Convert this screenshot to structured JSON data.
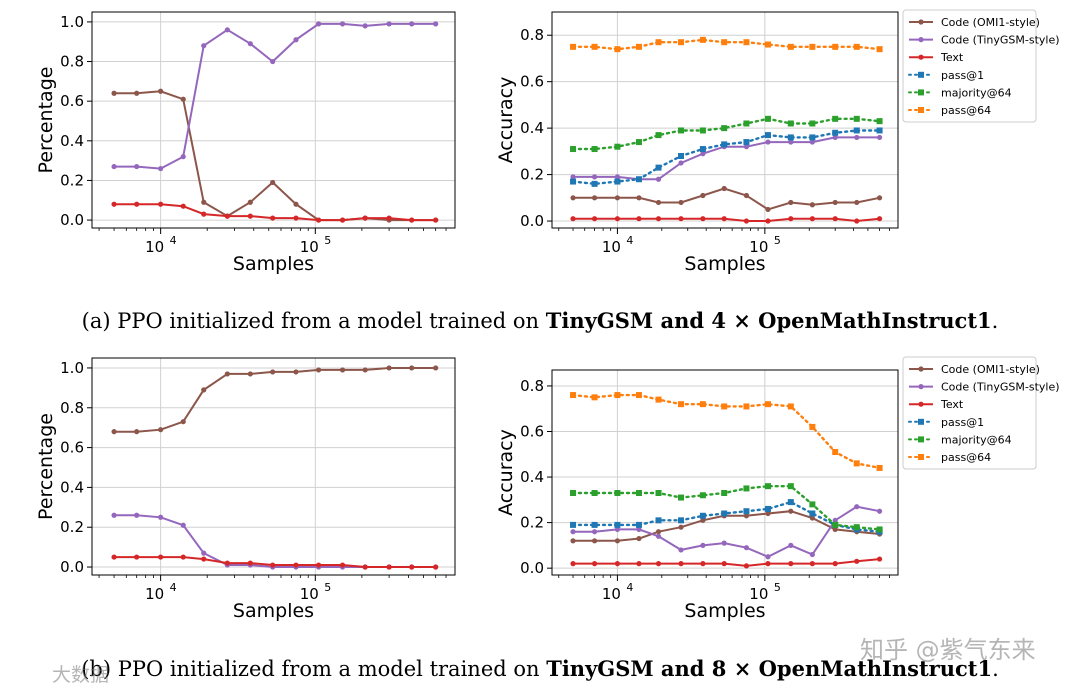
{
  "chart_data": [
    {
      "type": "line",
      "panel": "row1-left",
      "xlabel": "Samples",
      "ylabel": "Percentage",
      "xscale": "log",
      "xlim": [
        3600,
        800000
      ],
      "ylim": [
        -0.04,
        1.05
      ],
      "yticks": [
        "0.0",
        "0.2",
        "0.4",
        "0.6",
        "0.8",
        "1.0"
      ],
      "xticks": [
        {
          "label": "10",
          "exp": "4",
          "value": 10000
        },
        {
          "label": "10",
          "exp": "5",
          "value": 100000
        }
      ],
      "grid": true,
      "x": [
        5000,
        7000,
        10000,
        14000,
        19000,
        27000,
        38000,
        53000,
        75000,
        105000,
        150000,
        210000,
        300000,
        420000,
        600000
      ],
      "series": [
        {
          "name": "Code (OMI1-style)",
          "color": "#8c564b",
          "marker": "circle",
          "style": "solid",
          "values": [
            0.64,
            0.64,
            0.65,
            0.61,
            0.09,
            0.02,
            0.09,
            0.19,
            0.08,
            0.0,
            0.0,
            0.01,
            0.0,
            0.0,
            0.0
          ]
        },
        {
          "name": "Code (TinyGSM-style)",
          "color": "#9467bd",
          "marker": "circle",
          "style": "solid",
          "values": [
            0.27,
            0.27,
            0.26,
            0.32,
            0.88,
            0.96,
            0.89,
            0.8,
            0.91,
            0.99,
            0.99,
            0.98,
            0.99,
            0.99,
            0.99
          ]
        },
        {
          "name": "Text",
          "color": "#d62728",
          "marker": "circle",
          "style": "solid",
          "values": [
            0.08,
            0.08,
            0.08,
            0.07,
            0.03,
            0.02,
            0.02,
            0.01,
            0.01,
            0.0,
            0.0,
            0.01,
            0.01,
            0.0,
            0.0
          ]
        }
      ]
    },
    {
      "type": "line",
      "panel": "row1-right",
      "xlabel": "Samples",
      "ylabel": "Accuracy",
      "xscale": "log",
      "xlim": [
        3600,
        800000
      ],
      "ylim": [
        -0.03,
        0.9
      ],
      "yticks": [
        "0.0",
        "0.2",
        "0.4",
        "0.6",
        "0.8"
      ],
      "xticks": [
        {
          "label": "10",
          "exp": "4",
          "value": 10000
        },
        {
          "label": "10",
          "exp": "5",
          "value": 100000
        }
      ],
      "grid": true,
      "legend": "upper-right-outside",
      "x": [
        5000,
        7000,
        10000,
        14000,
        19000,
        27000,
        38000,
        53000,
        75000,
        105000,
        150000,
        210000,
        300000,
        420000,
        600000
      ],
      "series": [
        {
          "name": "Code (OMI1-style)",
          "color": "#8c564b",
          "marker": "circle",
          "style": "solid",
          "values": [
            0.1,
            0.1,
            0.1,
            0.1,
            0.08,
            0.08,
            0.11,
            0.14,
            0.11,
            0.05,
            0.08,
            0.07,
            0.08,
            0.08,
            0.1
          ]
        },
        {
          "name": "Code (TinyGSM-style)",
          "color": "#9467bd",
          "marker": "circle",
          "style": "solid",
          "values": [
            0.19,
            0.19,
            0.19,
            0.18,
            0.18,
            0.25,
            0.29,
            0.32,
            0.32,
            0.34,
            0.34,
            0.34,
            0.36,
            0.36,
            0.36
          ]
        },
        {
          "name": "Text",
          "color": "#d62728",
          "marker": "circle",
          "style": "solid",
          "values": [
            0.01,
            0.01,
            0.01,
            0.01,
            0.01,
            0.01,
            0.01,
            0.01,
            0.0,
            0.0,
            0.01,
            0.01,
            0.01,
            0.0,
            0.01
          ]
        },
        {
          "name": "pass@1",
          "color": "#1f77b4",
          "marker": "square",
          "style": "dotted",
          "values": [
            0.17,
            0.16,
            0.17,
            0.18,
            0.23,
            0.28,
            0.31,
            0.33,
            0.34,
            0.37,
            0.36,
            0.36,
            0.38,
            0.39,
            0.39
          ]
        },
        {
          "name": "majority@64",
          "color": "#2ca02c",
          "marker": "square",
          "style": "dotted",
          "values": [
            0.31,
            0.31,
            0.32,
            0.34,
            0.37,
            0.39,
            0.39,
            0.4,
            0.42,
            0.44,
            0.42,
            0.42,
            0.44,
            0.44,
            0.43
          ]
        },
        {
          "name": "pass@64",
          "color": "#ff7f0e",
          "marker": "square",
          "style": "dotted",
          "values": [
            0.75,
            0.75,
            0.74,
            0.75,
            0.77,
            0.77,
            0.78,
            0.77,
            0.77,
            0.76,
            0.75,
            0.75,
            0.75,
            0.75,
            0.74
          ]
        }
      ]
    },
    {
      "type": "line",
      "panel": "row2-left",
      "xlabel": "Samples",
      "ylabel": "Percentage",
      "xscale": "log",
      "xlim": [
        3600,
        800000
      ],
      "ylim": [
        -0.04,
        1.05
      ],
      "yticks": [
        "0.0",
        "0.2",
        "0.4",
        "0.6",
        "0.8",
        "1.0"
      ],
      "xticks": [
        {
          "label": "10",
          "exp": "4",
          "value": 10000
        },
        {
          "label": "10",
          "exp": "5",
          "value": 100000
        }
      ],
      "grid": true,
      "x": [
        5000,
        7000,
        10000,
        14000,
        19000,
        27000,
        38000,
        53000,
        75000,
        105000,
        150000,
        210000,
        300000,
        420000,
        600000
      ],
      "series": [
        {
          "name": "Code (OMI1-style)",
          "color": "#8c564b",
          "marker": "circle",
          "style": "solid",
          "values": [
            0.68,
            0.68,
            0.69,
            0.73,
            0.89,
            0.97,
            0.97,
            0.98,
            0.98,
            0.99,
            0.99,
            0.99,
            1.0,
            1.0,
            1.0
          ]
        },
        {
          "name": "Code (TinyGSM-style)",
          "color": "#9467bd",
          "marker": "circle",
          "style": "solid",
          "values": [
            0.26,
            0.26,
            0.25,
            0.21,
            0.07,
            0.01,
            0.01,
            0.0,
            0.0,
            0.0,
            0.0,
            0.0,
            0.0,
            0.0,
            0.0
          ]
        },
        {
          "name": "Text",
          "color": "#d62728",
          "marker": "circle",
          "style": "solid",
          "values": [
            0.05,
            0.05,
            0.05,
            0.05,
            0.04,
            0.02,
            0.02,
            0.01,
            0.01,
            0.01,
            0.01,
            0.0,
            0.0,
            0.0,
            0.0
          ]
        }
      ]
    },
    {
      "type": "line",
      "panel": "row2-right",
      "xlabel": "Samples",
      "ylabel": "Accuracy",
      "xscale": "log",
      "xlim": [
        3600,
        800000
      ],
      "ylim": [
        -0.03,
        0.87
      ],
      "yticks": [
        "0.0",
        "0.2",
        "0.4",
        "0.6",
        "0.8"
      ],
      "xticks": [
        {
          "label": "10",
          "exp": "4",
          "value": 10000
        },
        {
          "label": "10",
          "exp": "5",
          "value": 100000
        }
      ],
      "grid": true,
      "legend": "upper-right-outside",
      "x": [
        5000,
        7000,
        10000,
        14000,
        19000,
        27000,
        38000,
        53000,
        75000,
        105000,
        150000,
        210000,
        300000,
        420000,
        600000
      ],
      "series": [
        {
          "name": "Code (OMI1-style)",
          "color": "#8c564b",
          "marker": "circle",
          "style": "solid",
          "values": [
            0.12,
            0.12,
            0.12,
            0.13,
            0.16,
            0.18,
            0.21,
            0.23,
            0.23,
            0.24,
            0.25,
            0.22,
            0.17,
            0.16,
            0.15
          ]
        },
        {
          "name": "Code (TinyGSM-style)",
          "color": "#9467bd",
          "marker": "circle",
          "style": "solid",
          "values": [
            0.16,
            0.16,
            0.17,
            0.17,
            0.14,
            0.08,
            0.1,
            0.11,
            0.09,
            0.05,
            0.1,
            0.06,
            0.21,
            0.27,
            0.25
          ]
        },
        {
          "name": "Text",
          "color": "#d62728",
          "marker": "circle",
          "style": "solid",
          "values": [
            0.02,
            0.02,
            0.02,
            0.02,
            0.02,
            0.02,
            0.02,
            0.02,
            0.01,
            0.02,
            0.02,
            0.02,
            0.02,
            0.03,
            0.04
          ]
        },
        {
          "name": "pass@1",
          "color": "#1f77b4",
          "marker": "square",
          "style": "dotted",
          "values": [
            0.19,
            0.19,
            0.19,
            0.19,
            0.21,
            0.21,
            0.23,
            0.24,
            0.25,
            0.26,
            0.29,
            0.24,
            0.19,
            0.17,
            0.16
          ]
        },
        {
          "name": "majority@64",
          "color": "#2ca02c",
          "marker": "square",
          "style": "dotted",
          "values": [
            0.33,
            0.33,
            0.33,
            0.33,
            0.33,
            0.31,
            0.32,
            0.33,
            0.35,
            0.36,
            0.36,
            0.28,
            0.19,
            0.18,
            0.17
          ]
        },
        {
          "name": "pass@64",
          "color": "#ff7f0e",
          "marker": "square",
          "style": "dotted",
          "values": [
            0.76,
            0.75,
            0.76,
            0.76,
            0.74,
            0.72,
            0.72,
            0.71,
            0.71,
            0.72,
            0.71,
            0.62,
            0.51,
            0.46,
            0.44
          ]
        }
      ]
    }
  ],
  "captions": {
    "a": {
      "prefix": "(a) PPO initialized from a model trained on ",
      "bold": "TinyGSM and 4 × OpenMathInstruct1",
      "suffix": "."
    },
    "b": {
      "prefix": "(b) PPO initialized from a model trained on ",
      "bold": "TinyGSM and 8 × OpenMathInstruct1",
      "suffix": "."
    }
  },
  "watermarks": {
    "right": "知乎 @紫气东来",
    "left": "大数据"
  }
}
